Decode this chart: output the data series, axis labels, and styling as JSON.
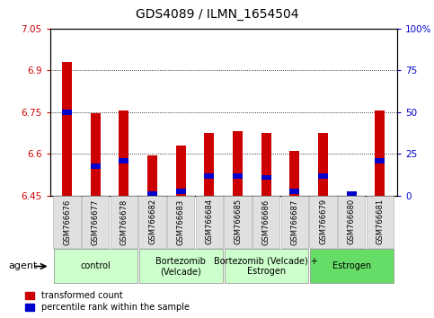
{
  "title": "GDS4089 / ILMN_1654504",
  "samples": [
    "GSM766676",
    "GSM766677",
    "GSM766678",
    "GSM766682",
    "GSM766683",
    "GSM766684",
    "GSM766685",
    "GSM766686",
    "GSM766687",
    "GSM766679",
    "GSM766680",
    "GSM766681"
  ],
  "red_values": [
    6.93,
    6.745,
    6.755,
    6.595,
    6.63,
    6.675,
    6.68,
    6.675,
    6.61,
    6.675,
    6.465,
    6.755
  ],
  "blue_values": [
    6.75,
    6.555,
    6.575,
    6.455,
    6.465,
    6.52,
    6.52,
    6.515,
    6.465,
    6.52,
    6.455,
    6.575
  ],
  "ymin": 6.45,
  "ymax": 7.05,
  "yticks": [
    6.45,
    6.6,
    6.75,
    6.9,
    7.05
  ],
  "ytick_labels": [
    "6.45",
    "6.6",
    "6.75",
    "6.9",
    "7.05"
  ],
  "y2ticks": [
    0,
    25,
    50,
    75,
    100
  ],
  "y2tick_labels": [
    "0",
    "25",
    "50",
    "75",
    "100%"
  ],
  "group_labels": [
    "control",
    "Bortezomib\n(Velcade)",
    "Bortezomib (Velcade) +\nEstrogen",
    "Estrogen"
  ],
  "group_starts": [
    0,
    3,
    6,
    9
  ],
  "group_ends": [
    3,
    6,
    9,
    12
  ],
  "group_colors": [
    "#ccffcc",
    "#ccffcc",
    "#ccffcc",
    "#66dd66"
  ],
  "bar_width": 0.35,
  "red_color": "#cc0000",
  "blue_color": "#0000cc",
  "agent_label": "agent",
  "legend_red": "transformed count",
  "legend_blue": "percentile rank within the sample",
  "title_fontsize": 10,
  "tick_fontsize": 7.5,
  "sample_fontsize": 6,
  "group_fontsize": 7
}
